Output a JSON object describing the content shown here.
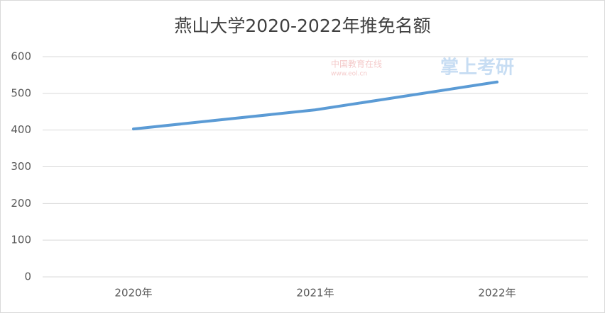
{
  "chart_data": {
    "type": "line",
    "title": "燕山大学2020-2022年推免名额",
    "categories": [
      "2020年",
      "2021年",
      "2022年"
    ],
    "series": [
      {
        "name": "推免名额",
        "color": "#5b9bd5",
        "values": [
          403,
          455,
          531
        ]
      }
    ],
    "ylim": [
      0,
      600
    ],
    "yticks": [
      0,
      100,
      200,
      300,
      400,
      500,
      600
    ],
    "grid": true,
    "watermark": [
      "中国教育在线",
      "www.eol.cn",
      "掌上考研"
    ]
  }
}
